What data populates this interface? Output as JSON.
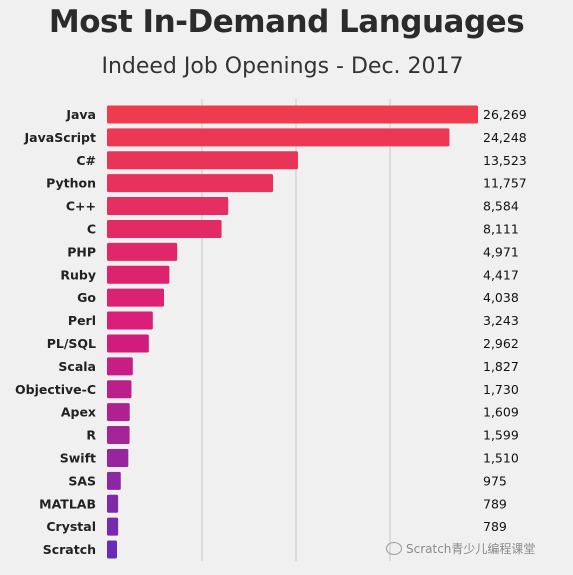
{
  "chart_data": {
    "type": "bar",
    "orientation": "horizontal",
    "title": "Most In-Demand Languages",
    "subtitle": "Indeed Job Openings - Dec. 2017",
    "categories": [
      "Java",
      "JavaScript",
      "C#",
      "Python",
      "C++",
      "C",
      "PHP",
      "Ruby",
      "Go",
      "Perl",
      "PL/SQL",
      "Scala",
      "Objective-C",
      "Apex",
      "R",
      "Swift",
      "SAS",
      "MATLAB",
      "Crystal",
      "Scratch"
    ],
    "values": [
      26269,
      24248,
      13523,
      11757,
      8584,
      8111,
      4971,
      4417,
      4038,
      3243,
      2962,
      1827,
      1730,
      1609,
      1599,
      1510,
      975,
      789,
      789,
      null
    ],
    "value_labels": [
      "26,269",
      "24,248",
      "13,523",
      "11,757",
      "8,584",
      "8,111",
      "4,971",
      "4,417",
      "4,038",
      "3,243",
      "2,962",
      "1,827",
      "1,730",
      "1,609",
      "1,599",
      "1,510",
      "975",
      "789",
      "789",
      ""
    ],
    "xlim": [
      0,
      26269
    ],
    "grid": true,
    "colors": {
      "start": "#ef3b4e",
      "mid": "#d81b7a",
      "end": "#6a2bb8"
    }
  },
  "watermark": "Scratch青少儿编程课堂"
}
